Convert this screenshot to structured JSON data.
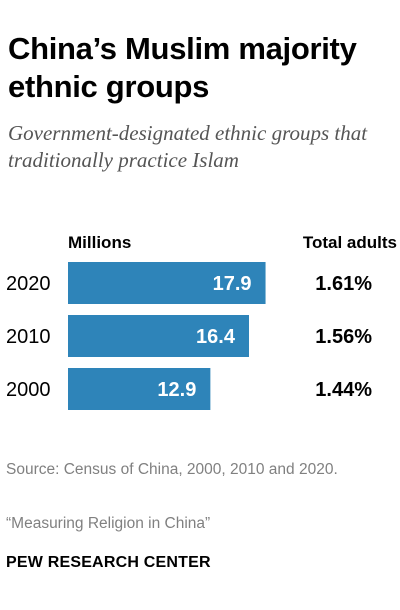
{
  "title": "China’s Muslim majority ethnic groups",
  "subtitle": "Government-designated ethnic groups that traditionally practice Islam",
  "source": "Source: Census of China, 2000, 2010 and 2020.",
  "note": "“Measuring Religion in China”",
  "brand": "PEW RESEARCH CENTER",
  "colors": {
    "bar": "#2e84b9",
    "bar_label": "#ffffff",
    "text": "#000000",
    "muted": "#808080"
  },
  "chart_data": {
    "type": "bar",
    "orientation": "horizontal",
    "column_header": "Millions",
    "second_column_header": "Total adults",
    "categories": [
      "2020",
      "2010",
      "2000"
    ],
    "values": [
      17.9,
      16.4,
      12.9
    ],
    "data_labels": [
      "17.9",
      "16.4",
      "12.9"
    ],
    "second_column_values": [
      "1.61%",
      "1.56%",
      "1.44%"
    ],
    "xlim": [
      0,
      19.3
    ],
    "grid": false,
    "legend": "none"
  }
}
